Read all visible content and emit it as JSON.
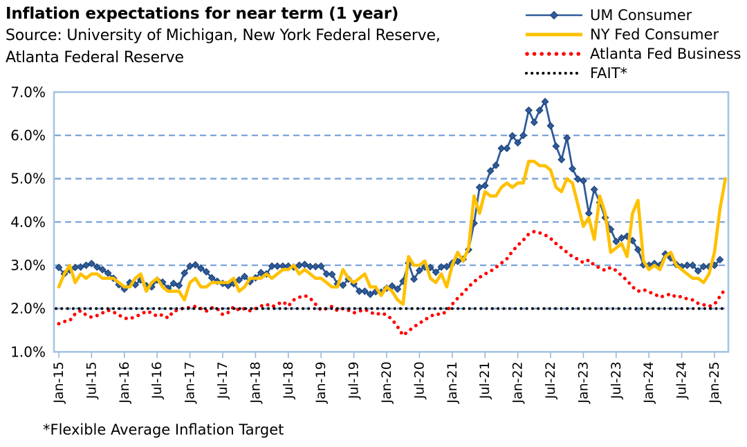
{
  "header": {
    "title": "Inflation expectations for near term (1 year)",
    "source_line1": "Source: University of Michigan, New York Federal Reserve,",
    "source_line2": "Atlanta Federal Reserve"
  },
  "footnote": "*Flexible Average Inflation Target",
  "colors": {
    "um_consumer": "#2E5B9B",
    "um_marker_edge": "#1C3E6E",
    "ny_fed": "#FFC000",
    "atlanta_fed": "#FF0000",
    "fait": "#000000",
    "gridline": "#7FA7D9",
    "plot_border": "#A5C3E4",
    "tick": "#9DB7D6",
    "text": "#000000"
  },
  "chart_data": {
    "type": "line",
    "title": "Inflation expectations for near term (1 year)",
    "x_start": "Jan-2015",
    "x_frequency": "monthly",
    "x_tick_step_months": 6,
    "x_tick_labels": [
      "Jan-15",
      "Jul-15",
      "Jan-16",
      "Jul-16",
      "Jan-17",
      "Jul-17",
      "Jan-18",
      "Jul-18",
      "Jan-19",
      "Jul-19",
      "Jan-20",
      "Jul-20",
      "Jan-21",
      "Jul-21",
      "Jan-22",
      "Jul-22",
      "Jan-23",
      "Jul-23",
      "Jan-24",
      "Jul-24",
      "Jan-25"
    ],
    "y_tick_labels": [
      "7.0%",
      "6.0%",
      "5.0%",
      "4.0%",
      "3.0%",
      "2.0%",
      "1.0%"
    ],
    "ylim": [
      1.0,
      7.0
    ],
    "grid": "horizontal-dashed",
    "legend_position": "top-right",
    "series": [
      {
        "name": "UM Consumer",
        "color": "#2E5B9B",
        "marker": "diamond-line",
        "values": [
          2.95,
          2.8,
          2.89,
          2.95,
          2.96,
          3.0,
          3.04,
          2.96,
          2.9,
          2.82,
          2.7,
          2.55,
          2.45,
          2.6,
          2.55,
          2.66,
          2.53,
          2.5,
          2.66,
          2.61,
          2.47,
          2.58,
          2.53,
          2.82,
          2.98,
          3.01,
          2.93,
          2.85,
          2.71,
          2.63,
          2.58,
          2.53,
          2.58,
          2.66,
          2.74,
          2.62,
          2.71,
          2.83,
          2.8,
          2.98,
          2.98,
          2.98,
          2.98,
          2.96,
          3.0,
          3.02,
          2.97,
          2.97,
          2.98,
          2.8,
          2.79,
          2.57,
          2.54,
          2.68,
          2.57,
          2.4,
          2.4,
          2.33,
          2.39,
          2.38,
          2.47,
          2.52,
          2.45,
          2.63,
          3.05,
          2.68,
          2.88,
          2.96,
          2.95,
          2.84,
          2.96,
          2.97,
          3.05,
          3.09,
          3.14,
          3.36,
          3.97,
          4.8,
          4.84,
          5.18,
          5.31,
          5.7,
          5.7,
          5.99,
          5.83,
          6.0,
          6.58,
          6.3,
          6.58,
          6.78,
          6.22,
          5.75,
          5.44,
          5.94,
          5.23,
          4.99,
          4.95,
          4.2,
          4.75,
          4.45,
          4.1,
          3.83,
          3.55,
          3.63,
          3.67,
          3.57,
          3.36,
          3.01,
          3.0,
          3.04,
          3.0,
          3.26,
          3.17,
          3.02,
          2.97,
          3.0,
          3.0,
          2.87,
          2.97,
          2.97,
          3.0,
          3.13
        ]
      },
      {
        "name": "NY Fed Consumer",
        "color": "#FFC000",
        "marker": "solid-line",
        "values": [
          2.5,
          2.8,
          3.0,
          2.6,
          2.8,
          2.7,
          2.8,
          2.8,
          2.7,
          2.7,
          2.7,
          2.6,
          2.5,
          2.5,
          2.7,
          2.8,
          2.4,
          2.6,
          2.7,
          2.5,
          2.4,
          2.4,
          2.4,
          2.2,
          2.6,
          2.7,
          2.5,
          2.5,
          2.6,
          2.6,
          2.6,
          2.6,
          2.7,
          2.4,
          2.5,
          2.7,
          2.7,
          2.7,
          2.8,
          2.7,
          2.8,
          2.9,
          2.9,
          3.0,
          2.8,
          2.9,
          2.8,
          2.7,
          2.7,
          2.6,
          2.5,
          2.5,
          2.9,
          2.7,
          2.6,
          2.7,
          2.8,
          2.5,
          2.5,
          2.3,
          2.5,
          2.4,
          2.2,
          2.1,
          3.2,
          3.0,
          3.0,
          3.1,
          2.7,
          2.6,
          2.8,
          2.5,
          3.0,
          3.3,
          3.1,
          3.4,
          4.6,
          4.2,
          4.7,
          4.6,
          4.6,
          4.8,
          4.9,
          4.8,
          4.9,
          4.9,
          5.4,
          5.4,
          5.3,
          5.3,
          5.2,
          4.8,
          4.7,
          5.0,
          4.9,
          4.4,
          3.9,
          4.1,
          3.6,
          4.6,
          4.2,
          3.3,
          3.4,
          3.5,
          3.2,
          4.2,
          4.5,
          3.1,
          2.9,
          3.0,
          2.9,
          3.2,
          3.3,
          3.0,
          2.9,
          2.8,
          2.7,
          2.7,
          2.6,
          2.8,
          3.3,
          4.3,
          5.0
        ]
      },
      {
        "name": "Atlanta Fed Business",
        "color": "#FF0000",
        "marker": "dot-line",
        "values": [
          1.65,
          1.7,
          1.72,
          1.88,
          1.95,
          1.85,
          1.8,
          1.84,
          1.9,
          1.96,
          1.92,
          1.85,
          1.78,
          1.76,
          1.82,
          1.86,
          1.94,
          1.9,
          1.82,
          1.86,
          1.78,
          1.94,
          1.97,
          2.02,
          2.02,
          2.05,
          2.0,
          1.94,
          2.02,
          2.0,
          1.86,
          1.91,
          2.04,
          1.96,
          2.0,
          1.95,
          2.0,
          2.06,
          2.1,
          2.04,
          2.1,
          2.16,
          2.06,
          2.2,
          2.26,
          2.3,
          2.24,
          2.1,
          1.96,
          2.0,
          2.05,
          1.95,
          2.0,
          1.96,
          1.9,
          1.94,
          1.98,
          1.92,
          1.86,
          1.9,
          1.85,
          1.75,
          1.58,
          1.38,
          1.48,
          1.58,
          1.66,
          1.74,
          1.82,
          1.88,
          1.86,
          1.94,
          2.1,
          2.24,
          2.36,
          2.5,
          2.62,
          2.72,
          2.8,
          2.86,
          2.95,
          3.05,
          3.15,
          3.32,
          3.46,
          3.58,
          3.72,
          3.78,
          3.75,
          3.7,
          3.62,
          3.5,
          3.4,
          3.3,
          3.2,
          3.14,
          3.06,
          3.12,
          3.0,
          2.94,
          2.88,
          2.95,
          2.88,
          2.76,
          2.65,
          2.5,
          2.4,
          2.44,
          2.38,
          2.34,
          2.26,
          2.3,
          2.34,
          2.26,
          2.28,
          2.22,
          2.2,
          2.12,
          2.09,
          2.05,
          2.1,
          2.28,
          2.46
        ]
      },
      {
        "name": "FAIT*",
        "color": "#000000",
        "marker": "dot-flat",
        "constant": 2.0
      }
    ]
  }
}
